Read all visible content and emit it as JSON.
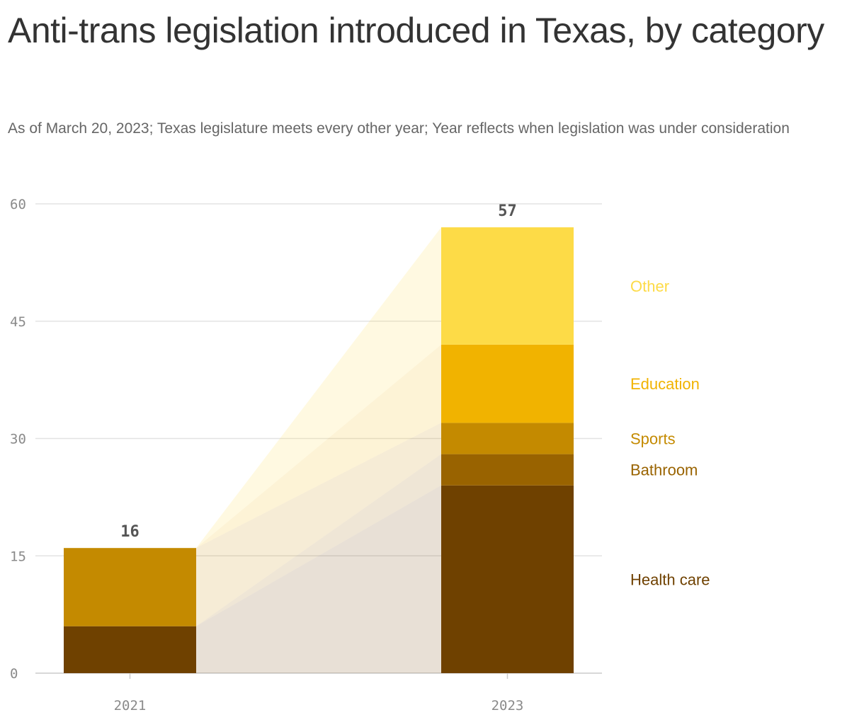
{
  "title": "Anti-trans legislation introduced in Texas, by category",
  "subtitle": "As of March 20, 2023; Texas legislature meets every other year; Year reflects when legislation was under consideration",
  "chart_data": {
    "type": "bar",
    "stacked": true,
    "title": "Anti-trans legislation introduced in Texas, by category",
    "subtitle": "As of March 20, 2023; Texas legislature meets every other year; Year reflects when legislation was under consideration",
    "categories": [
      "2021",
      "2023"
    ],
    "series": [
      {
        "name": "Health care",
        "values": [
          6,
          24
        ],
        "color": "#6f4100"
      },
      {
        "name": "Bathroom",
        "values": [
          0,
          4
        ],
        "color": "#996300"
      },
      {
        "name": "Sports",
        "values": [
          10,
          4
        ],
        "color": "#c48a00"
      },
      {
        "name": "Education",
        "values": [
          0,
          10
        ],
        "color": "#f1b300"
      },
      {
        "name": "Other",
        "values": [
          0,
          15
        ],
        "color": "#fddb47"
      }
    ],
    "totals": [
      16,
      57
    ],
    "ylim": [
      0,
      60
    ],
    "yticks": [
      0,
      15,
      30,
      45,
      60
    ],
    "xlabel": "",
    "ylabel": "",
    "grid": true,
    "legend": "right, inline labels"
  }
}
